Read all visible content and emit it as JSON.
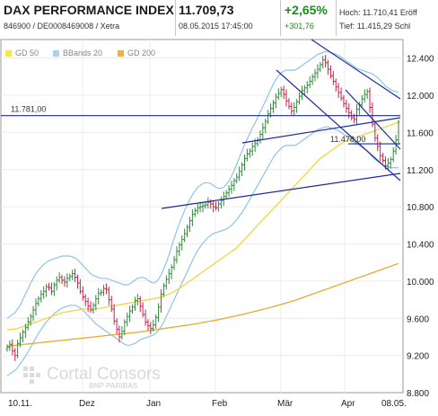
{
  "header": {
    "title": "DAX PERFORMANCE INDEX",
    "subtitle": "846900 / DE0008469008 / Xetra",
    "price": "11.709,73",
    "datetime": "08.05.2015 17:45:00",
    "change_pct": "+2,65%",
    "change_abs": "+301,76",
    "high_label": "Hoch:",
    "high_value": "11.710,41",
    "high_extra": "Eröff",
    "low_label": "Tief:",
    "low_value": "11.415,29",
    "low_extra": "Schl"
  },
  "legend": [
    {
      "label": "GD 50",
      "color": "#f7e35a"
    },
    {
      "label": "BBands 20",
      "color": "#a9d2ef"
    },
    {
      "label": "GD 200",
      "color": "#f0b040"
    }
  ],
  "watermark": {
    "line1": "Cortal Consors",
    "line2": "BNP PARIBAS"
  },
  "colors": {
    "up": "#2e8b3a",
    "down": "#c8234a",
    "trendline": "#1e2a9c",
    "bollinger": "#8fc4e6",
    "gd50": "#f2d540",
    "gd200": "#e8aa30"
  },
  "chart_data": {
    "type": "ohlc",
    "title": "DAX PERFORMANCE INDEX",
    "ylim": [
      8800,
      12600
    ],
    "y_ticks": [
      "12.400",
      "12.000",
      "11.600",
      "11.200",
      "10.800",
      "10.400",
      "10.000",
      "9.600",
      "9.200",
      "8.800"
    ],
    "x_ticks": [
      "10.11.",
      "Dez",
      "Jan",
      "Feb",
      "Mär",
      "Apr",
      "08.05."
    ],
    "levels": [
      {
        "label": "11.781,00",
        "value": 11781
      },
      {
        "label": "11.478,00",
        "value": 11478
      }
    ],
    "close": [
      9290,
      9320,
      9250,
      9200,
      9330,
      9390,
      9450,
      9500,
      9560,
      9620,
      9690,
      9760,
      9810,
      9860,
      9890,
      9940,
      9930,
      9890,
      9960,
      10010,
      10040,
      10010,
      9990,
      10030,
      10050,
      10080,
      10040,
      9980,
      9890,
      9830,
      9780,
      9730,
      9690,
      9740,
      9810,
      9870,
      9880,
      9920,
      9910,
      9800,
      9700,
      9570,
      9480,
      9400,
      9460,
      9560,
      9620,
      9680,
      9720,
      9790,
      9810,
      9730,
      9640,
      9560,
      9520,
      9490,
      9530,
      9610,
      9720,
      9860,
      9950,
      10020,
      10080,
      10150,
      10230,
      10320,
      10390,
      10450,
      10510,
      10580,
      10650,
      10720,
      10760,
      10790,
      10800,
      10810,
      10820,
      10850,
      10830,
      10800,
      10790,
      10830,
      10870,
      10910,
      10950,
      10990,
      11030,
      11080,
      11120,
      11180,
      11250,
      11320,
      11370,
      11400,
      11450,
      11480,
      11520,
      11580,
      11650,
      11720,
      11800,
      11860,
      11920,
      11980,
      12020,
      12060,
      12010,
      11940,
      11880,
      11830,
      11870,
      11930,
      11990,
      12050,
      12080,
      12110,
      12150,
      12200,
      12240,
      12280,
      12330,
      12380,
      12350,
      12280,
      12210,
      12150,
      12090,
      12030,
      11970,
      11910,
      11860,
      11810,
      11760,
      11740,
      11850,
      11900,
      11960,
      12010,
      12040,
      11870,
      11690,
      11540,
      11450,
      11350,
      11300,
      11240,
      11270,
      11310,
      11400,
      11520,
      11710
    ],
    "band_upper": [
      9600,
      9620,
      9640,
      9660,
      9700,
      9740,
      9800,
      9860,
      9920,
      9980,
      10030,
      10080,
      10120,
      10150,
      10180,
      10200,
      10220,
      10230,
      10240,
      10250,
      10260,
      10270,
      10270,
      10270,
      10270,
      10260,
      10250,
      10230,
      10200,
      10170,
      10140,
      10110,
      10080,
      10060,
      10050,
      10040,
      10030,
      10030,
      10030,
      10020,
      10010,
      10000,
      9990,
      9980,
      9970,
      9960,
      9960,
      9970,
      9990,
      10010,
      10030,
      10040,
      10040,
      10030,
      10010,
      9990,
      9980,
      9990,
      10020,
      10070,
      10130,
      10200,
      10280,
      10370,
      10460,
      10540,
      10620,
      10690,
      10760,
      10820,
      10880,
      10930,
      10970,
      11010,
      11030,
      11050,
      11060,
      11060,
      11050,
      11030,
      11010,
      11000,
      11000,
      11010,
      11040,
      11080,
      11130,
      11190,
      11260,
      11330,
      11400,
      11470,
      11530,
      11590,
      11650,
      11700,
      11760,
      11820,
      11880,
      11940,
      12000,
      12060,
      12120,
      12170,
      12210,
      12240,
      12260,
      12270,
      12270,
      12270,
      12270,
      12280,
      12300,
      12320,
      12340,
      12360,
      12380,
      12400,
      12420,
      12440,
      12450,
      12460,
      12470,
      12470,
      12460,
      12450,
      12440,
      12430,
      12410,
      12390,
      12370,
      12350,
      12330,
      12310,
      12290,
      12280,
      12270,
      12260,
      12250,
      12240,
      12230,
      12210,
      12190,
      12160,
      12130,
      12100,
      12080,
      12060,
      12050,
      12040,
      12030
    ],
    "band_lower": [
      8980,
      9000,
      9020,
      9040,
      9070,
      9110,
      9150,
      9190,
      9240,
      9290,
      9340,
      9390,
      9440,
      9480,
      9520,
      9560,
      9590,
      9620,
      9650,
      9670,
      9690,
      9710,
      9720,
      9730,
      9740,
      9740,
      9740,
      9730,
      9710,
      9690,
      9660,
      9630,
      9600,
      9570,
      9540,
      9520,
      9500,
      9480,
      9460,
      9440,
      9420,
      9400,
      9380,
      9360,
      9340,
      9320,
      9310,
      9310,
      9320,
      9330,
      9350,
      9370,
      9380,
      9390,
      9400,
      9410,
      9420,
      9440,
      9470,
      9510,
      9560,
      9620,
      9680,
      9740,
      9800,
      9860,
      9920,
      9980,
      10040,
      10100,
      10160,
      10220,
      10280,
      10330,
      10370,
      10410,
      10440,
      10470,
      10490,
      10510,
      10520,
      10530,
      10540,
      10550,
      10560,
      10580,
      10600,
      10630,
      10660,
      10700,
      10740,
      10780,
      10830,
      10880,
      10930,
      10980,
      11030,
      11080,
      11130,
      11180,
      11230,
      11280,
      11330,
      11370,
      11400,
      11430,
      11450,
      11460,
      11460,
      11460,
      11460,
      11470,
      11490,
      11510,
      11530,
      11550,
      11570,
      11590,
      11610,
      11630,
      11640,
      11650,
      11660,
      11660,
      11650,
      11640,
      11630,
      11620,
      11600,
      11580,
      11560,
      11540,
      11520,
      11500,
      11480,
      11460,
      11440,
      11420,
      11400,
      11370,
      11340,
      11310,
      11290,
      11270,
      11250,
      11240,
      11230,
      11220,
      11220,
      11220,
      11220
    ],
    "gd50": [
      9480,
      9480,
      9480,
      9485,
      9490,
      9500,
      9510,
      9520,
      9530,
      9540,
      9550,
      9560,
      9570,
      9580,
      9590,
      9600,
      9610,
      9620,
      9630,
      9640,
      9650,
      9660,
      9665,
      9670,
      9675,
      9680,
      9685,
      9690,
      9695,
      9700,
      9700,
      9700,
      9700,
      9700,
      9700,
      9705,
      9710,
      9715,
      9720,
      9725,
      9730,
      9735,
      9740,
      9745,
      9750,
      9755,
      9760,
      9765,
      9770,
      9775,
      9780,
      9785,
      9790,
      9795,
      9800,
      9805,
      9810,
      9815,
      9820,
      9830,
      9840,
      9850,
      9860,
      9875,
      9890,
      9905,
      9920,
      9940,
      9960,
      9980,
      10000,
      10020,
      10040,
      10060,
      10080,
      10100,
      10120,
      10140,
      10160,
      10180,
      10200,
      10220,
      10240,
      10260,
      10280,
      10300,
      10320,
      10340,
      10360,
      10390,
      10420,
      10450,
      10480,
      10510,
      10540,
      10570,
      10600,
      10630,
      10660,
      10690,
      10720,
      10750,
      10780,
      10810,
      10840,
      10870,
      10900,
      10930,
      10960,
      10990,
      11020,
      11050,
      11080,
      11110,
      11140,
      11170,
      11200,
      11230,
      11260,
      11290,
      11320,
      11340,
      11360,
      11380,
      11400,
      11420,
      11440,
      11460,
      11480,
      11500,
      11510,
      11520,
      11530,
      11540,
      11550,
      11560,
      11570,
      11580,
      11590,
      11600,
      11610,
      11620,
      11630,
      11640,
      11650,
      11660,
      11670,
      11680,
      11690,
      11700,
      11710
    ],
    "gd200": [
      9300,
      9303,
      9306,
      9309,
      9312,
      9315,
      9318,
      9321,
      9324,
      9327,
      9330,
      9333,
      9336,
      9339,
      9342,
      9345,
      9348,
      9351,
      9354,
      9357,
      9360,
      9363,
      9366,
      9369,
      9372,
      9375,
      9378,
      9381,
      9384,
      9387,
      9390,
      9393,
      9396,
      9399,
      9402,
      9405,
      9408,
      9411,
      9414,
      9417,
      9420,
      9423,
      9426,
      9429,
      9432,
      9435,
      9438,
      9441,
      9444,
      9447,
      9450,
      9454,
      9458,
      9462,
      9466,
      9470,
      9474,
      9478,
      9482,
      9486,
      9490,
      9494,
      9498,
      9502,
      9506,
      9510,
      9514,
      9518,
      9522,
      9526,
      9530,
      9535,
      9540,
      9545,
      9550,
      9555,
      9560,
      9565,
      9570,
      9575,
      9580,
      9586,
      9592,
      9598,
      9604,
      9610,
      9616,
      9622,
      9628,
      9634,
      9640,
      9647,
      9654,
      9661,
      9668,
      9675,
      9682,
      9689,
      9696,
      9703,
      9710,
      9718,
      9726,
      9734,
      9742,
      9750,
      9758,
      9766,
      9774,
      9782,
      9790,
      9800,
      9810,
      9820,
      9830,
      9840,
      9850,
      9860,
      9870,
      9880,
      9890,
      9900,
      9910,
      9920,
      9930,
      9940,
      9950,
      9960,
      9970,
      9980,
      9990,
      10000,
      10010,
      10020,
      10030,
      10040,
      10050,
      10060,
      10070,
      10080,
      10090,
      10100,
      10110,
      10120,
      10130,
      10140,
      10150,
      10160,
      10170,
      10180,
      10190
    ]
  }
}
